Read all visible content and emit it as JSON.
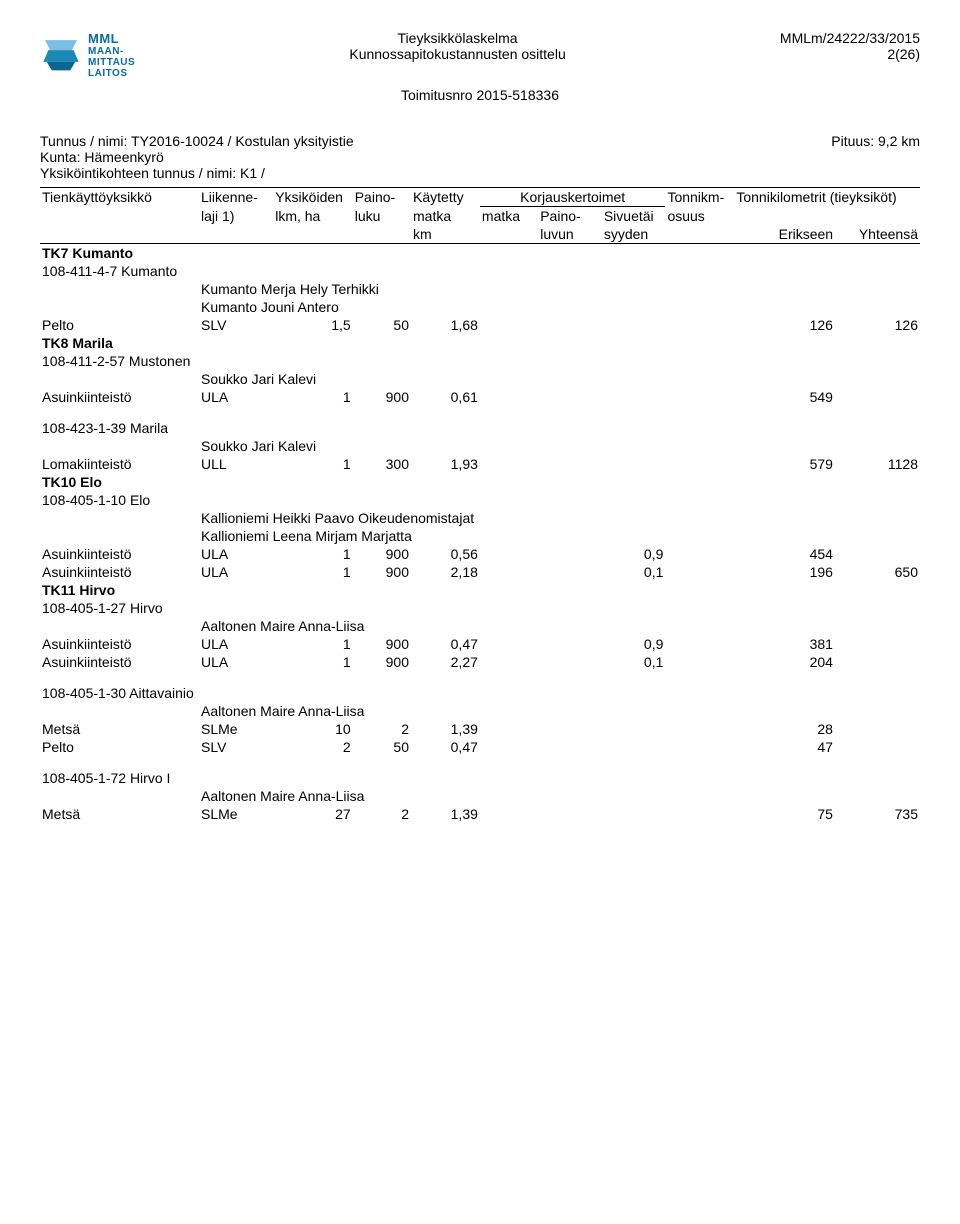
{
  "header": {
    "logo_top": "MML",
    "logo_line1": "MAAN-",
    "logo_line2": "MITTAUS",
    "logo_line3": "LAITOS",
    "title_line1": "Tieyksikkölaskelma",
    "title_line2": "Kunnossapitokustannusten osittelu",
    "doc_ref": "MMLm/24222/33/2015",
    "page_num": "2(26)",
    "toimitus": "Toimitusnro 2015-518336"
  },
  "meta": {
    "tunnus_label": "Tunnus / nimi:  TY2016-10024 / Kostulan yksityistie",
    "pituus": "Pituus: 9,2 km",
    "kunta": "Kunta: Hämeenkyrö",
    "yksi": "Yksiköintikohteen tunnus / nimi:  K1 /"
  },
  "colhead": {
    "c1a": "Tienkäyttöyksikkö",
    "c2a": "Liikenne-",
    "c2b": "laji  1)",
    "c3a": "Yksiköiden",
    "c3b": "lkm, ha",
    "c4a": "Paino-",
    "c4b": "luku",
    "c5a": "Käytetty",
    "c5b": "matka",
    "c5c": "km",
    "c6a": "Korjauskertoimet",
    "c6b": "matka",
    "c7b": "Paino-",
    "c7c": "luvun",
    "c8b": "Sivuetäi",
    "c8c": "syyden",
    "c9a": "Tonnikm-",
    "c9b": "osuus",
    "c10a": "Tonnikilometrit (tieyksiköt)",
    "c10b": "Erikseen",
    "c11b": "Yhteensä"
  },
  "sections": [
    {
      "title": "TK7 Kumanto",
      "sub": "108-411-4-7 Kumanto",
      "owners": [
        "Kumanto Merja Hely Terhikki",
        "Kumanto Jouni Antero"
      ],
      "rows": [
        {
          "t": "Pelto",
          "laji": "SLV",
          "lkm": "1,5",
          "paino": "50",
          "matka": "1,68",
          "m2": "",
          "p2": "",
          "s2": "",
          "osu": "",
          "erik": "126",
          "yht": "126"
        }
      ]
    },
    {
      "title": "TK8 Marila",
      "sub": "108-411-2-57 Mustonen",
      "owners": [
        "Soukko Jari Kalevi"
      ],
      "rows": [
        {
          "t": "Asuinkiinteistö",
          "laji": "ULA",
          "lkm": "1",
          "paino": "900",
          "matka": "0,61",
          "m2": "",
          "p2": "",
          "s2": "",
          "osu": "",
          "erik": "549",
          "yht": ""
        }
      ],
      "extra": [
        {
          "sub": "108-423-1-39 Marila",
          "owners": [
            "Soukko Jari Kalevi"
          ],
          "rows": [
            {
              "t": "Lomakiinteistö",
              "laji": "ULL",
              "lkm": "1",
              "paino": "300",
              "matka": "1,93",
              "m2": "",
              "p2": "",
              "s2": "",
              "osu": "",
              "erik": "579",
              "yht": "1128"
            }
          ]
        }
      ]
    },
    {
      "title": "TK10 Elo",
      "sub": "108-405-1-10 Elo",
      "owners": [
        "Kallioniemi Heikki Paavo Oikeudenomistajat",
        "Kallioniemi Leena Mirjam Marjatta"
      ],
      "rows": [
        {
          "t": "Asuinkiinteistö",
          "laji": "ULA",
          "lkm": "1",
          "paino": "900",
          "matka": "0,56",
          "m2": "",
          "p2": "",
          "s2": "0,9",
          "osu": "",
          "erik": "454",
          "yht": ""
        },
        {
          "t": "Asuinkiinteistö",
          "laji": "ULA",
          "lkm": "1",
          "paino": "900",
          "matka": "2,18",
          "m2": "",
          "p2": "",
          "s2": "0,1",
          "osu": "",
          "erik": "196",
          "yht": "650"
        }
      ]
    },
    {
      "title": "TK11 Hirvo",
      "sub": "108-405-1-27 Hirvo",
      "owners": [
        "Aaltonen Maire Anna-Liisa"
      ],
      "rows": [
        {
          "t": "Asuinkiinteistö",
          "laji": "ULA",
          "lkm": "1",
          "paino": "900",
          "matka": "0,47",
          "m2": "",
          "p2": "",
          "s2": "0,9",
          "osu": "",
          "erik": "381",
          "yht": ""
        },
        {
          "t": "Asuinkiinteistö",
          "laji": "ULA",
          "lkm": "1",
          "paino": "900",
          "matka": "2,27",
          "m2": "",
          "p2": "",
          "s2": "0,1",
          "osu": "",
          "erik": "204",
          "yht": ""
        }
      ],
      "extra": [
        {
          "sub": "108-405-1-30 Aittavainio",
          "owners": [
            "Aaltonen Maire Anna-Liisa"
          ],
          "rows": [
            {
              "t": "Metsä",
              "laji": "SLMe",
              "lkm": "10",
              "paino": "2",
              "matka": "1,39",
              "m2": "",
              "p2": "",
              "s2": "",
              "osu": "",
              "erik": "28",
              "yht": ""
            },
            {
              "t": "Pelto",
              "laji": "SLV",
              "lkm": "2",
              "paino": "50",
              "matka": "0,47",
              "m2": "",
              "p2": "",
              "s2": "",
              "osu": "",
              "erik": "47",
              "yht": ""
            }
          ]
        },
        {
          "sub": "108-405-1-72 Hirvo I",
          "owners": [
            "Aaltonen Maire Anna-Liisa"
          ],
          "rows": [
            {
              "t": "Metsä",
              "laji": "SLMe",
              "lkm": "27",
              "paino": "2",
              "matka": "1,39",
              "m2": "",
              "p2": "",
              "s2": "",
              "osu": "",
              "erik": "75",
              "yht": "735"
            }
          ]
        }
      ]
    }
  ]
}
